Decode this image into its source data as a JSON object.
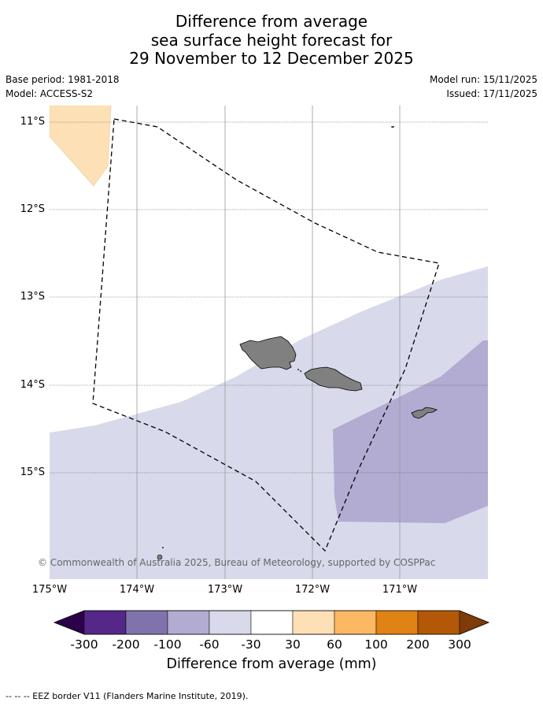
{
  "title": {
    "line1": "Difference from average",
    "line2": "sea surface height forecast for",
    "line3": "29 November to 12 December 2025"
  },
  "info": {
    "base_period": "Base period: 1981-2018",
    "model": "Model: ACCESS-S2",
    "model_run": "Model run: 15/11/2025",
    "issued": "Issued: 17/11/2025"
  },
  "map": {
    "lat_labels": [
      "11°S",
      "12°S",
      "13°S",
      "14°S",
      "15°S"
    ],
    "lon_labels": [
      "175°W",
      "174°W",
      "173°W",
      "172°W",
      "171°W"
    ],
    "lon_range": [
      -175,
      -170
    ],
    "lat_range": [
      -16.3,
      -10.8
    ],
    "copyright": "© Commonwealth of Australia 2025, Bureau of Meteorology, supported by COSPPac",
    "land_color": "#808080"
  },
  "colorbar": {
    "title": "Difference from average (mm)",
    "tick_labels": [
      "-300",
      "-200",
      "-100",
      "-60",
      "-30",
      "30",
      "60",
      "100",
      "200",
      "300"
    ],
    "colors": [
      "#2d004b",
      "#542788",
      "#8073ac",
      "#b2abd2",
      "#d8daeb",
      "#ffffff",
      "#fee0b6",
      "#fdb863",
      "#e08214",
      "#b35806",
      "#7f3b08"
    ]
  },
  "footnote": "--  --  -- EEZ border V11 (Flanders Marine Institute, 2019)."
}
